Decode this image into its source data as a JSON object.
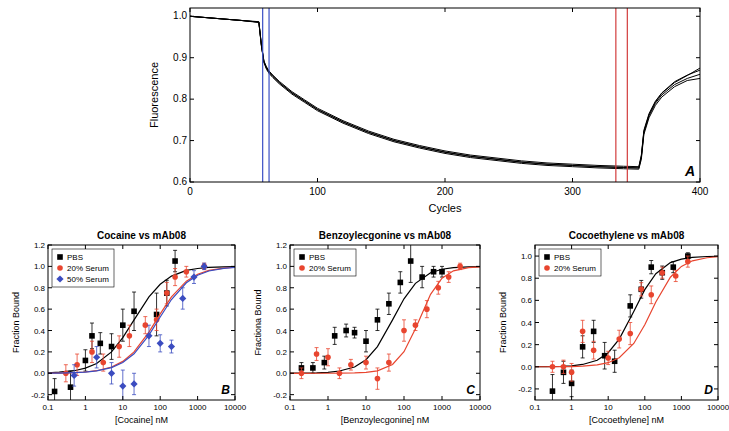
{
  "chart_data": [
    {
      "type": "line",
      "panel_label": "A",
      "x_label": "Cycles",
      "y_label": "Fluorescence",
      "xlim": [
        0,
        400
      ],
      "ylim": [
        0.6,
        1.02
      ],
      "xticks": [
        0,
        100,
        200,
        300,
        400
      ],
      "yticks": [
        0.6,
        0.7,
        0.8,
        0.9,
        {
          "value": 1,
          "label": "1.0"
        }
      ],
      "grid": false,
      "x": [
        0,
        20,
        40,
        54,
        56,
        58,
        60,
        62,
        65,
        70,
        80,
        90,
        100,
        120,
        140,
        160,
        180,
        200,
        220,
        240,
        260,
        280,
        300,
        320,
        340,
        352,
        354,
        356,
        360,
        365,
        370,
        380,
        390,
        400
      ],
      "series": [
        {
          "color": "#000000",
          "values": [
            1.0,
            0.995,
            0.99,
            0.986,
            0.93,
            0.89,
            0.875,
            0.865,
            0.855,
            0.84,
            0.815,
            0.795,
            0.775,
            0.745,
            0.72,
            0.7,
            0.685,
            0.672,
            0.662,
            0.655,
            0.648,
            0.643,
            0.64,
            0.637,
            0.635,
            0.634,
            0.66,
            0.72,
            0.76,
            0.79,
            0.81,
            0.835,
            0.85,
            0.86
          ]
        },
        {
          "color": "#000000",
          "values": [
            1.0,
            0.995,
            0.99,
            0.985,
            0.928,
            0.888,
            0.872,
            0.862,
            0.852,
            0.837,
            0.812,
            0.792,
            0.772,
            0.742,
            0.717,
            0.697,
            0.682,
            0.669,
            0.659,
            0.652,
            0.645,
            0.64,
            0.637,
            0.634,
            0.632,
            0.631,
            0.655,
            0.715,
            0.755,
            0.785,
            0.805,
            0.83,
            0.845,
            0.85
          ]
        },
        {
          "color": "#000000",
          "values": [
            1.0,
            0.995,
            0.99,
            0.987,
            0.932,
            0.892,
            0.878,
            0.868,
            0.858,
            0.843,
            0.818,
            0.798,
            0.778,
            0.748,
            0.723,
            0.703,
            0.688,
            0.675,
            0.665,
            0.658,
            0.651,
            0.646,
            0.643,
            0.64,
            0.638,
            0.637,
            0.665,
            0.725,
            0.765,
            0.795,
            0.815,
            0.842,
            0.858,
            0.87
          ]
        },
        {
          "color": "#000000",
          "values": [
            1.0,
            0.995,
            0.99,
            0.986,
            0.93,
            0.89,
            0.875,
            0.865,
            0.855,
            0.84,
            0.815,
            0.795,
            0.775,
            0.745,
            0.72,
            0.7,
            0.685,
            0.672,
            0.662,
            0.655,
            0.648,
            0.643,
            0.64,
            0.637,
            0.635,
            0.634,
            0.662,
            0.722,
            0.762,
            0.793,
            0.814,
            0.84,
            0.857,
            0.875
          ]
        }
      ],
      "vlines": [
        {
          "value": 57,
          "color": "#3a4fc4"
        },
        {
          "value": 62,
          "color": "#3a4fc4"
        },
        {
          "value": 334,
          "color": "#d23c3c"
        },
        {
          "value": 343,
          "color": "#d23c3c"
        }
      ]
    },
    {
      "type": "scatter",
      "title": "Cocaine vs mAb08",
      "panel_label": "B",
      "x_label": "[Cocaine] nM",
      "y_label": "Fraction Bound",
      "log": "x",
      "grid": false,
      "legend": "upper left",
      "xlim": [
        0.1,
        10000
      ],
      "ylim": [
        -0.25,
        1.2
      ],
      "xticks": [
        0.1,
        1,
        10,
        100,
        1000,
        10000
      ],
      "yticks": [
        -0.2,
        {
          "value": 0,
          "label": "0.0"
        },
        0.2,
        0.4,
        0.6,
        0.8,
        {
          "value": 1,
          "label": "1.0"
        },
        1.2
      ],
      "series": [
        {
          "name": "PBS",
          "color": "#000000",
          "marker": "square",
          "x": [
            0.15,
            0.4,
            1,
            1.5,
            2.5,
            5,
            10,
            20,
            80,
            150,
            250
          ],
          "values": [
            -0.17,
            -0.13,
            0.12,
            0.35,
            0.28,
            0.25,
            0.45,
            0.58,
            0.55,
            0.75,
            1.05
          ],
          "errors": [
            0.12,
            0.15,
            0.1,
            0.12,
            0.1,
            0.12,
            0.15,
            0.18,
            0.2,
            0.12,
            0.1
          ],
          "fit": {
            "x": [
              0.1,
              0.2,
              0.5,
              1,
              2,
              5,
              10,
              20,
              50,
              100,
              200,
              500,
              1000,
              2000,
              5000,
              10000
            ],
            "values": [
              0.005,
              0.01,
              0.024,
              0.048,
              0.091,
              0.2,
              0.333,
              0.5,
              0.714,
              0.833,
              0.909,
              0.962,
              0.98,
              0.99,
              0.996,
              0.998
            ]
          }
        },
        {
          "name": "20% Serum",
          "color": "#e8452f",
          "marker": "circle",
          "x": [
            0.3,
            0.6,
            1.5,
            3,
            8,
            15,
            40,
            80,
            150,
            250,
            500,
            1500
          ],
          "values": [
            0.0,
            0.08,
            0.2,
            0.1,
            0.25,
            0.35,
            0.45,
            0.5,
            0.75,
            0.9,
            0.95,
            1.0
          ],
          "errors": [
            0.08,
            0.1,
            0.1,
            0.08,
            0.1,
            0.1,
            0.08,
            0.1,
            0.1,
            0.08,
            0.05,
            0.03
          ],
          "fit": {
            "x": [
              0.1,
              0.2,
              0.5,
              1,
              2,
              5,
              10,
              20,
              50,
              100,
              200,
              500,
              1000,
              2000,
              5000,
              10000
            ],
            "values": [
              0.001,
              0.002,
              0.006,
              0.012,
              0.024,
              0.059,
              0.111,
              0.2,
              0.385,
              0.556,
              0.714,
              0.862,
              0.926,
              0.962,
              0.984,
              0.992
            ]
          }
        },
        {
          "name": "50% Serum",
          "color": "#3b4cc0",
          "marker": "diamond",
          "x": [
            0.5,
            2,
            5,
            10,
            20,
            50,
            100,
            200,
            400,
            800,
            1500
          ],
          "values": [
            -0.02,
            0.15,
            0.0,
            -0.12,
            -0.1,
            0.35,
            0.28,
            0.25,
            0.7,
            0.9,
            1.0
          ],
          "errors": [
            0.1,
            0.1,
            0.1,
            0.15,
            0.1,
            0.1,
            0.08,
            0.06,
            0.1,
            0.06,
            0.03
          ],
          "fit": {
            "x": [
              0.1,
              0.2,
              0.5,
              1,
              2,
              5,
              10,
              20,
              50,
              100,
              200,
              500,
              1000,
              2000,
              5000,
              10000
            ],
            "values": [
              0.001,
              0.002,
              0.006,
              0.011,
              0.022,
              0.053,
              0.1,
              0.182,
              0.357,
              0.526,
              0.69,
              0.847,
              0.917,
              0.957,
              0.982,
              0.991
            ]
          }
        }
      ]
    },
    {
      "type": "scatter",
      "title": "Benzoylecgonine vs mAb08",
      "panel_label": "C",
      "x_label": "[Benzoylecgonine] nM",
      "y_label": "Fractiona Bound",
      "log": "x",
      "grid": false,
      "legend": "upper left",
      "xlim": [
        0.1,
        10000
      ],
      "ylim": [
        -0.25,
        1.2
      ],
      "xticks": [
        0.1,
        1,
        10,
        100,
        1000,
        10000
      ],
      "yticks": [
        -0.2,
        {
          "value": 0,
          "label": "0.0"
        },
        0.2,
        0.4,
        0.6,
        0.8,
        {
          "value": 1,
          "label": "1.0"
        },
        1.2
      ],
      "series": [
        {
          "name": "PBS",
          "color": "#000000",
          "marker": "square",
          "x": [
            0.2,
            0.4,
            0.8,
            1.5,
            3,
            5,
            10,
            20,
            40,
            80,
            150,
            300,
            600,
            1000
          ],
          "values": [
            0.05,
            0.05,
            0.1,
            0.35,
            0.4,
            0.38,
            0.3,
            0.5,
            0.65,
            0.85,
            1.05,
            0.9,
            0.95,
            0.95
          ],
          "errors": [
            0.05,
            0.05,
            0.06,
            0.08,
            0.06,
            0.05,
            0.1,
            0.1,
            0.1,
            0.1,
            0.2,
            0.1,
            0.05,
            0.05
          ],
          "fit": {
            "x": [
              0.1,
              0.2,
              0.5,
              1,
              2,
              5,
              10,
              20,
              50,
              100,
              200,
              500,
              1000,
              2000,
              5000,
              10000
            ],
            "values": [
              0.0006,
              0.0013,
              0.004,
              0.009,
              0.021,
              0.059,
              0.127,
              0.25,
              0.5,
              0.697,
              0.841,
              0.941,
              0.973,
              0.988,
              0.996,
              0.998
            ]
          }
        },
        {
          "name": "20% Serum",
          "color": "#e8452f",
          "marker": "circle",
          "x": [
            0.2,
            0.5,
            1,
            2,
            4,
            10,
            20,
            40,
            100,
            200,
            400,
            800,
            1500,
            3000
          ],
          "values": [
            0.0,
            0.18,
            0.15,
            0.0,
            0.08,
            0.1,
            -0.05,
            0.1,
            0.4,
            0.45,
            0.6,
            0.8,
            0.9,
            1.0
          ],
          "errors": [
            0.05,
            0.06,
            0.08,
            0.05,
            0.05,
            0.06,
            0.1,
            0.08,
            0.1,
            0.05,
            0.08,
            0.06,
            0.05,
            0.03
          ],
          "fit": {
            "x": [
              0.1,
              0.2,
              0.5,
              1,
              2,
              5,
              10,
              20,
              50,
              100,
              200,
              500,
              1000,
              2000,
              5000,
              10000
            ],
            "values": [
              0.0,
              0.0,
              0.0001,
              0.0003,
              0.0007,
              0.003,
              0.008,
              0.022,
              0.082,
              0.202,
              0.417,
              0.739,
              0.889,
              0.958,
              0.989,
              0.996
            ]
          }
        }
      ]
    },
    {
      "type": "scatter",
      "title": "Cocoethylene vs mAb08",
      "panel_label": "D",
      "x_label": "[Cocoethylene] nM",
      "y_label": "Fraction Bound",
      "log": "x",
      "grid": false,
      "legend": "upper left",
      "xlim": [
        0.1,
        10000
      ],
      "ylim": [
        -0.3,
        1.1
      ],
      "xticks": [
        0.1,
        1,
        10,
        100,
        1000,
        10000
      ],
      "yticks": [
        -0.2,
        {
          "value": 0,
          "label": "0.0"
        },
        0.2,
        0.4,
        0.6,
        0.8,
        {
          "value": 1,
          "label": "1.0"
        }
      ],
      "series": [
        {
          "name": "PBS",
          "color": "#000000",
          "marker": "square",
          "x": [
            0.3,
            0.6,
            1,
            2,
            4,
            8,
            15,
            40,
            80,
            150,
            300,
            600,
            1500
          ],
          "values": [
            -0.22,
            -0.05,
            -0.15,
            0.18,
            0.32,
            0.1,
            0.05,
            0.55,
            0.7,
            0.9,
            0.85,
            0.9,
            1.0
          ],
          "errors": [
            0.15,
            0.1,
            0.12,
            0.1,
            0.1,
            0.12,
            0.1,
            0.1,
            0.08,
            0.06,
            0.06,
            0.05,
            0.03
          ],
          "fit": {
            "x": [
              0.1,
              0.2,
              0.5,
              1,
              2,
              5,
              10,
              20,
              50,
              100,
              200,
              500,
              1000,
              2000,
              5000,
              10000
            ],
            "values": [
              0.0006,
              0.0013,
              0.004,
              0.009,
              0.021,
              0.059,
              0.127,
              0.25,
              0.5,
              0.697,
              0.841,
              0.941,
              0.973,
              0.988,
              0.996,
              0.998
            ]
          }
        },
        {
          "name": "20% Serum",
          "color": "#e8452f",
          "marker": "circle",
          "x": [
            0.3,
            0.6,
            1,
            2,
            4,
            10,
            20,
            40,
            80,
            150,
            300,
            700,
            1500
          ],
          "values": [
            0.0,
            0.0,
            -0.05,
            0.32,
            0.15,
            0.08,
            0.25,
            0.3,
            0.7,
            0.65,
            0.85,
            0.82,
            0.95
          ],
          "errors": [
            0.05,
            0.06,
            0.08,
            0.1,
            0.08,
            0.06,
            0.08,
            0.1,
            0.06,
            0.08,
            0.05,
            0.05,
            0.05
          ],
          "fit": {
            "x": [
              0.1,
              0.2,
              0.5,
              1,
              2,
              5,
              10,
              20,
              50,
              100,
              200,
              500,
              1000,
              2000,
              5000,
              10000
            ],
            "values": [
              0.0002,
              0.0004,
              0.001,
              0.002,
              0.006,
              0.017,
              0.037,
              0.082,
              0.211,
              0.38,
              0.585,
              0.809,
              0.907,
              0.957,
              0.985,
              0.994
            ]
          }
        }
      ]
    }
  ]
}
